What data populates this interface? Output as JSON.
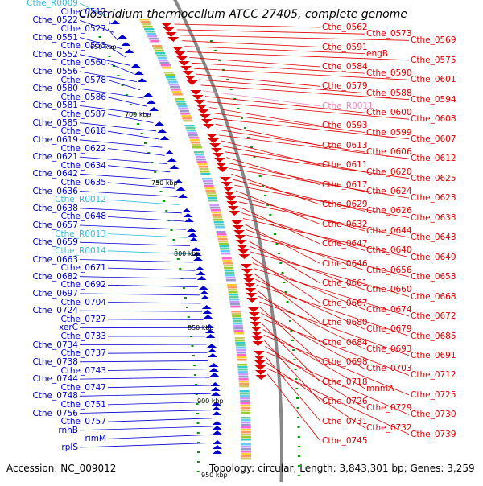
{
  "title": "Clostridium thermocellum ATCC 27405, complete genome",
  "accession": "Accession: NC_009012",
  "topology": "Topology: circular; Length: 3,843,301 bp; Genes: 3,259",
  "colors": {
    "forward": "#0000cc",
    "reverse": "#dd0000",
    "rna": "#33bbdd",
    "pink": "#ee88bb",
    "backbone": "#888888",
    "tick": "#009900"
  },
  "kbp_labels": [
    "650 kbp",
    "700 kbp",
    "750 kbp",
    "800 kbp",
    "850 kbp",
    "900 kbp",
    "950 kbp"
  ],
  "left_labels": [
    {
      "text": "Cthe_R0009",
      "kind": "rna"
    },
    {
      "text": "Cthe_0512",
      "kind": "fwd"
    },
    {
      "text": "Cthe_0522",
      "kind": "fwd"
    },
    {
      "text": "Cthe_0527",
      "kind": "fwd"
    },
    {
      "text": "Cthe_0551",
      "kind": "fwd"
    },
    {
      "text": "Cthe_0553",
      "kind": "fwd"
    },
    {
      "text": "Cthe_0552",
      "kind": "fwd"
    },
    {
      "text": "Cthe_0560",
      "kind": "fwd"
    },
    {
      "text": "Cthe_0556",
      "kind": "fwd"
    },
    {
      "text": "Cthe_0578",
      "kind": "fwd"
    },
    {
      "text": "Cthe_0580",
      "kind": "fwd"
    },
    {
      "text": "Cthe_0586",
      "kind": "fwd"
    },
    {
      "text": "Cthe_0581",
      "kind": "fwd"
    },
    {
      "text": "Cthe_0587",
      "kind": "fwd"
    },
    {
      "text": "Cthe_0585",
      "kind": "fwd"
    },
    {
      "text": "Cthe_0618",
      "kind": "fwd"
    },
    {
      "text": "Cthe_0619",
      "kind": "fwd"
    },
    {
      "text": "Cthe_0622",
      "kind": "fwd"
    },
    {
      "text": "Cthe_0621",
      "kind": "fwd"
    },
    {
      "text": "Cthe_0634",
      "kind": "fwd"
    },
    {
      "text": "Cthe_0642",
      "kind": "fwd"
    },
    {
      "text": "Cthe_0635",
      "kind": "fwd"
    },
    {
      "text": "Cthe_0636",
      "kind": "fwd"
    },
    {
      "text": "Cthe_R0012",
      "kind": "rna"
    },
    {
      "text": "Cthe_0638",
      "kind": "fwd"
    },
    {
      "text": "Cthe_0648",
      "kind": "fwd"
    },
    {
      "text": "Cthe_0657",
      "kind": "fwd"
    },
    {
      "text": "Cthe_R0013",
      "kind": "rna"
    },
    {
      "text": "Cthe_0659",
      "kind": "fwd"
    },
    {
      "text": "Cthe_R0014",
      "kind": "rna"
    },
    {
      "text": "Cthe_0663",
      "kind": "fwd"
    },
    {
      "text": "Cthe_0671",
      "kind": "fwd"
    },
    {
      "text": "Cthe_0682",
      "kind": "fwd"
    },
    {
      "text": "Cthe_0692",
      "kind": "fwd"
    },
    {
      "text": "Cthe_0697",
      "kind": "fwd"
    },
    {
      "text": "Cthe_0704",
      "kind": "fwd"
    },
    {
      "text": "Cthe_0724",
      "kind": "fwd"
    },
    {
      "text": "Cthe_0727",
      "kind": "fwd"
    },
    {
      "text": "xerC",
      "kind": "fwd"
    },
    {
      "text": "Cthe_0733",
      "kind": "fwd"
    },
    {
      "text": "Cthe_0734",
      "kind": "fwd"
    },
    {
      "text": "Cthe_0737",
      "kind": "fwd"
    },
    {
      "text": "Cthe_0738",
      "kind": "fwd"
    },
    {
      "text": "Cthe_0743",
      "kind": "fwd"
    },
    {
      "text": "Cthe_0744",
      "kind": "fwd"
    },
    {
      "text": "Cthe_0747",
      "kind": "fwd"
    },
    {
      "text": "Cthe_0748",
      "kind": "fwd"
    },
    {
      "text": "Cthe_0751",
      "kind": "fwd"
    },
    {
      "text": "Cthe_0756",
      "kind": "fwd"
    },
    {
      "text": "Cthe_0757",
      "kind": "fwd"
    },
    {
      "text": "rnhB",
      "kind": "fwd"
    },
    {
      "text": "rimM",
      "kind": "fwd"
    },
    {
      "text": "rplS",
      "kind": "fwd"
    }
  ],
  "right_labels": [
    {
      "text": "Cthe_0562",
      "kind": "rev"
    },
    {
      "text": "Cthe_0573",
      "kind": "rev"
    },
    {
      "text": "Cthe_0569",
      "kind": "rev"
    },
    {
      "text": "Cthe_0591",
      "kind": "rev"
    },
    {
      "text": "engB",
      "kind": "rev"
    },
    {
      "text": "Cthe_0575",
      "kind": "rev"
    },
    {
      "text": "Cthe_0584",
      "kind": "rev"
    },
    {
      "text": "Cthe_0590",
      "kind": "rev"
    },
    {
      "text": "Cthe_0601",
      "kind": "rev"
    },
    {
      "text": "Cthe_0579",
      "kind": "rev"
    },
    {
      "text": "Cthe_0588",
      "kind": "rev"
    },
    {
      "text": "Cthe_0594",
      "kind": "rev"
    },
    {
      "text": "Cthe_R0011",
      "kind": "pink"
    },
    {
      "text": "Cthe_0600",
      "kind": "rev"
    },
    {
      "text": "Cthe_0608",
      "kind": "rev"
    },
    {
      "text": "Cthe_0593",
      "kind": "rev"
    },
    {
      "text": "Cthe_0599",
      "kind": "rev"
    },
    {
      "text": "Cthe_0607",
      "kind": "rev"
    },
    {
      "text": "Cthe_0613",
      "kind": "rev"
    },
    {
      "text": "Cthe_0606",
      "kind": "rev"
    },
    {
      "text": "Cthe_0612",
      "kind": "rev"
    },
    {
      "text": "Cthe_0611",
      "kind": "rev"
    },
    {
      "text": "Cthe_0620",
      "kind": "rev"
    },
    {
      "text": "Cthe_0625",
      "kind": "rev"
    },
    {
      "text": "Cthe_0617",
      "kind": "rev"
    },
    {
      "text": "Cthe_0624",
      "kind": "rev"
    },
    {
      "text": "Cthe_0623",
      "kind": "rev"
    },
    {
      "text": "Cthe_0629",
      "kind": "rev"
    },
    {
      "text": "Cthe_0626",
      "kind": "rev"
    },
    {
      "text": "Cthe_0633",
      "kind": "rev"
    },
    {
      "text": "Cthe_0632",
      "kind": "rev"
    },
    {
      "text": "Cthe_0644",
      "kind": "rev"
    },
    {
      "text": "Cthe_0643",
      "kind": "rev"
    },
    {
      "text": "Cthe_0647",
      "kind": "rev"
    },
    {
      "text": "Cthe_0640",
      "kind": "rev"
    },
    {
      "text": "Cthe_0649",
      "kind": "rev"
    },
    {
      "text": "Cthe_0646",
      "kind": "rev"
    },
    {
      "text": "Cthe_0656",
      "kind": "rev"
    },
    {
      "text": "Cthe_0653",
      "kind": "rev"
    },
    {
      "text": "Cthe_0661",
      "kind": "rev"
    },
    {
      "text": "Cthe_0660",
      "kind": "rev"
    },
    {
      "text": "Cthe_0668",
      "kind": "rev"
    },
    {
      "text": "Cthe_0667",
      "kind": "rev"
    },
    {
      "text": "Cthe_0674",
      "kind": "rev"
    },
    {
      "text": "Cthe_0672",
      "kind": "rev"
    },
    {
      "text": "Cthe_0680",
      "kind": "rev"
    },
    {
      "text": "Cthe_0679",
      "kind": "rev"
    },
    {
      "text": "Cthe_0685",
      "kind": "rev"
    },
    {
      "text": "Cthe_0684",
      "kind": "rev"
    },
    {
      "text": "Cthe_0693",
      "kind": "rev"
    },
    {
      "text": "Cthe_0691",
      "kind": "rev"
    },
    {
      "text": "Cthe_0698",
      "kind": "rev"
    },
    {
      "text": "Cthe_0703",
      "kind": "rev"
    },
    {
      "text": "Cthe_0712",
      "kind": "rev"
    },
    {
      "text": "Cthe_0718",
      "kind": "rev"
    },
    {
      "text": "mnmA",
      "kind": "rev"
    },
    {
      "text": "Cthe_0725",
      "kind": "rev"
    },
    {
      "text": "Cthe_0726",
      "kind": "rev"
    },
    {
      "text": "Cthe_0729",
      "kind": "rev"
    },
    {
      "text": "Cthe_0730",
      "kind": "rev"
    },
    {
      "text": "Cthe_0731",
      "kind": "rev"
    },
    {
      "text": "Cthe_0732",
      "kind": "rev"
    },
    {
      "text": "Cthe_0739",
      "kind": "rev"
    },
    {
      "text": "Cthe_0745",
      "kind": "rev"
    }
  ]
}
